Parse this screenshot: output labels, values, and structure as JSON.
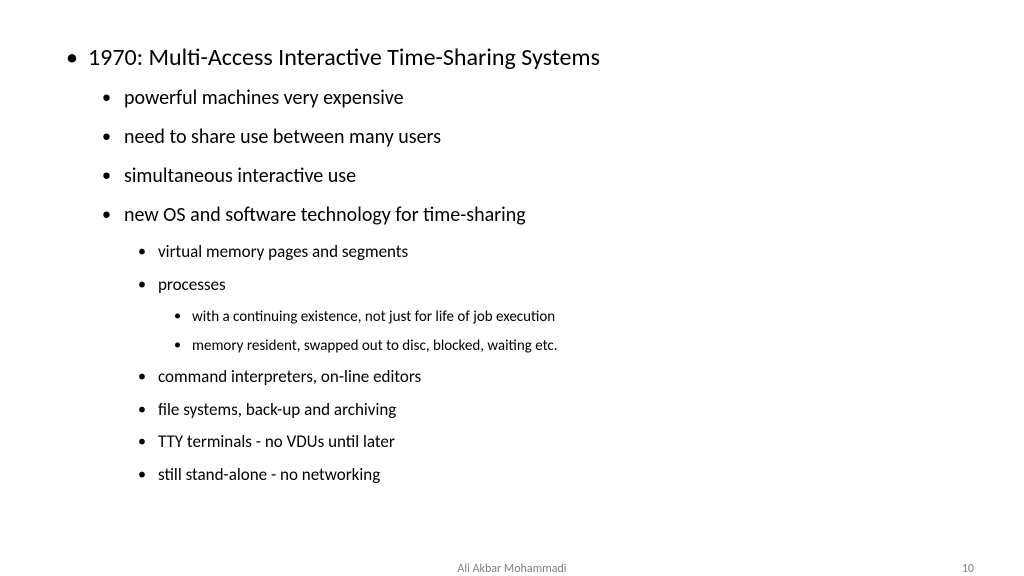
{
  "colors": {
    "background": "#ffffff",
    "text": "#000000",
    "footer": "#808080"
  },
  "typography": {
    "font_family": "Calibri",
    "l1_fontsize": 24,
    "l2_fontsize": 20,
    "l3_fontsize": 17,
    "l4_fontsize": 15,
    "footer_fontsize": 12
  },
  "slide": {
    "l1": "1970: Multi-Access Interactive Time-Sharing Systems",
    "l2_items": {
      "a": "powerful machines very expensive",
      "b": "need to share use between many users",
      "c": "simultaneous interactive use",
      "d": "new OS and software technology for time-sharing"
    },
    "l3_items": {
      "a": "virtual memory pages and segments",
      "b": "processes",
      "c": "command interpreters, on-line editors",
      "d": "file systems, back-up and archiving",
      "e": "TTY terminals - no VDUs until later",
      "f": "still stand-alone - no networking"
    },
    "l4_items": {
      "a": "with a continuing existence, not just for life of job execution",
      "b": "memory resident, swapped out to disc, blocked, waiting etc."
    }
  },
  "footer": {
    "author": "Ali Akbar Mohammadi",
    "page": "10"
  }
}
